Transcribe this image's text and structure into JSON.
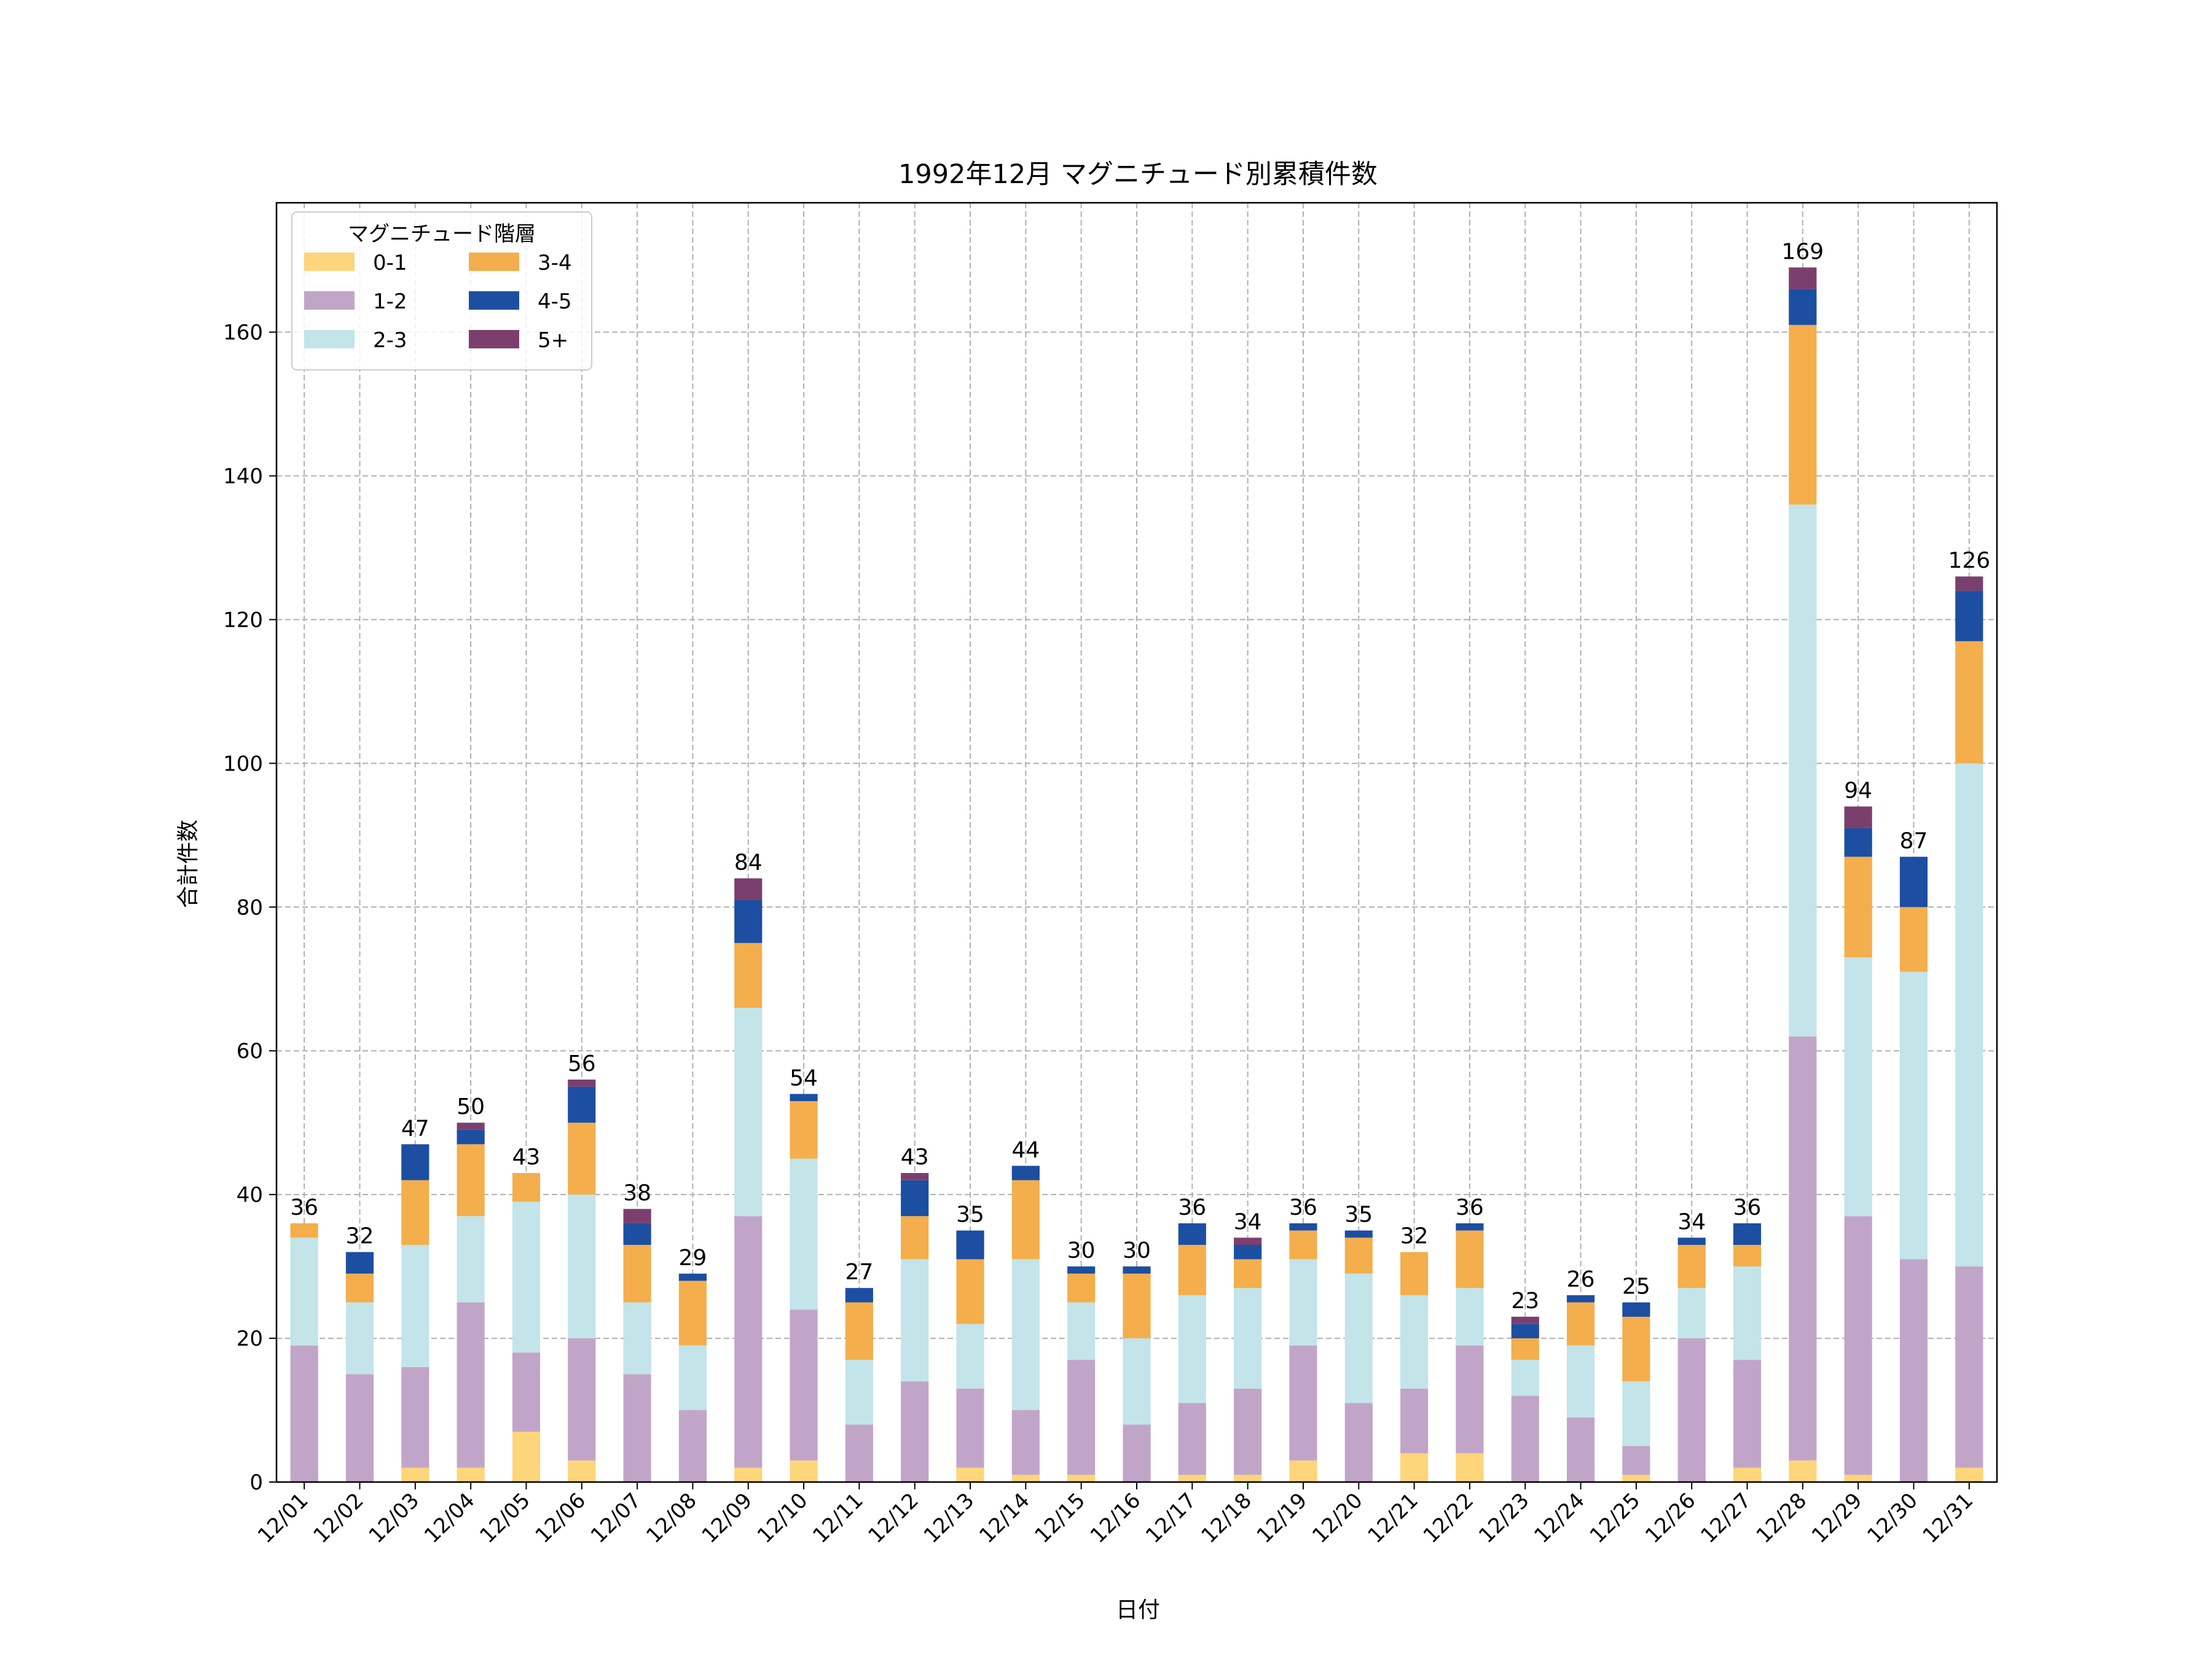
{
  "chart_data": {
    "type": "bar",
    "stacked": true,
    "title": "1992年12月 マグニチュード別累積件数",
    "xlabel": "日付",
    "ylabel": "合計件数",
    "ylim": [
      0,
      178
    ],
    "yticks": [
      0,
      20,
      40,
      60,
      80,
      100,
      120,
      140,
      160
    ],
    "grid": true,
    "legend": {
      "title": "マグニチュード階層",
      "placement": "top-left",
      "columns": 2
    },
    "categories": [
      "12/01",
      "12/02",
      "12/03",
      "12/04",
      "12/05",
      "12/06",
      "12/07",
      "12/08",
      "12/09",
      "12/10",
      "12/11",
      "12/12",
      "12/13",
      "12/14",
      "12/15",
      "12/16",
      "12/17",
      "12/18",
      "12/19",
      "12/20",
      "12/21",
      "12/22",
      "12/23",
      "12/24",
      "12/25",
      "12/26",
      "12/27",
      "12/28",
      "12/29",
      "12/30",
      "12/31"
    ],
    "series": [
      {
        "name": "0-1",
        "color": "#fdd57a",
        "values": [
          0,
          0,
          2,
          2,
          7,
          3,
          0,
          0,
          2,
          3,
          0,
          0,
          2,
          1,
          1,
          0,
          1,
          1,
          3,
          0,
          4,
          4,
          0,
          0,
          1,
          0,
          2,
          3,
          1,
          0,
          2
        ]
      },
      {
        "name": "1-2",
        "color": "#c1a5c9",
        "values": [
          19,
          15,
          14,
          23,
          11,
          17,
          15,
          10,
          35,
          21,
          8,
          14,
          11,
          9,
          16,
          8,
          10,
          12,
          16,
          11,
          9,
          15,
          12,
          9,
          4,
          20,
          15,
          59,
          36,
          31,
          28
        ]
      },
      {
        "name": "2-3",
        "color": "#c3e4e8",
        "values": [
          15,
          10,
          17,
          12,
          21,
          20,
          10,
          9,
          29,
          21,
          9,
          17,
          9,
          21,
          8,
          12,
          15,
          14,
          12,
          18,
          13,
          8,
          5,
          10,
          9,
          7,
          13,
          74,
          36,
          40,
          70
        ]
      },
      {
        "name": "3-4",
        "color": "#f4ae4c",
        "values": [
          2,
          4,
          9,
          10,
          4,
          10,
          8,
          9,
          9,
          8,
          8,
          6,
          9,
          11,
          4,
          9,
          7,
          4,
          4,
          5,
          6,
          8,
          3,
          6,
          9,
          6,
          3,
          25,
          14,
          9,
          17
        ]
      },
      {
        "name": "4-5",
        "color": "#1c4ea2",
        "values": [
          0,
          3,
          5,
          2,
          0,
          5,
          3,
          1,
          6,
          1,
          2,
          5,
          4,
          2,
          1,
          1,
          3,
          2,
          1,
          1,
          0,
          1,
          2,
          1,
          2,
          1,
          3,
          5,
          4,
          7,
          7
        ]
      },
      {
        "name": "5+",
        "color": "#7b3f6e",
        "values": [
          0,
          0,
          0,
          1,
          0,
          1,
          2,
          0,
          3,
          0,
          0,
          1,
          0,
          0,
          0,
          0,
          0,
          1,
          0,
          0,
          0,
          0,
          1,
          0,
          0,
          0,
          0,
          3,
          3,
          0,
          2
        ]
      }
    ],
    "totals": [
      36,
      32,
      47,
      50,
      43,
      56,
      38,
      29,
      84,
      54,
      27,
      43,
      35,
      44,
      30,
      30,
      36,
      34,
      36,
      35,
      32,
      36,
      23,
      26,
      25,
      34,
      36,
      169,
      94,
      87,
      126
    ]
  }
}
